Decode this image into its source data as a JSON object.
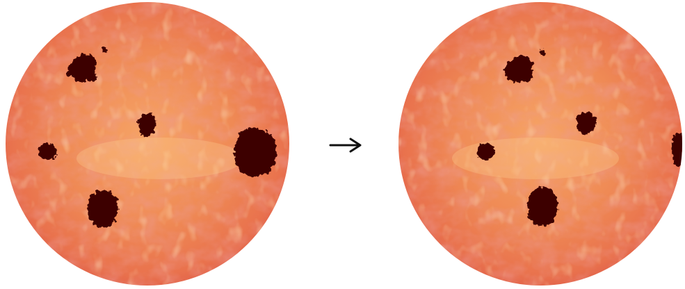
{
  "scene": {
    "description_free": true,
    "colors": {
      "background": "#ffffff",
      "sun_light": "#f7a968",
      "sun_mid": "#ee8250",
      "sun_dark": "#d9584a",
      "sun_edge": "#e36a4c",
      "spot": "#3d0505",
      "spot_rim": "#5a0a08",
      "arrow": "#111111"
    },
    "icons": {
      "arrow": "right-arrow-icon"
    }
  }
}
